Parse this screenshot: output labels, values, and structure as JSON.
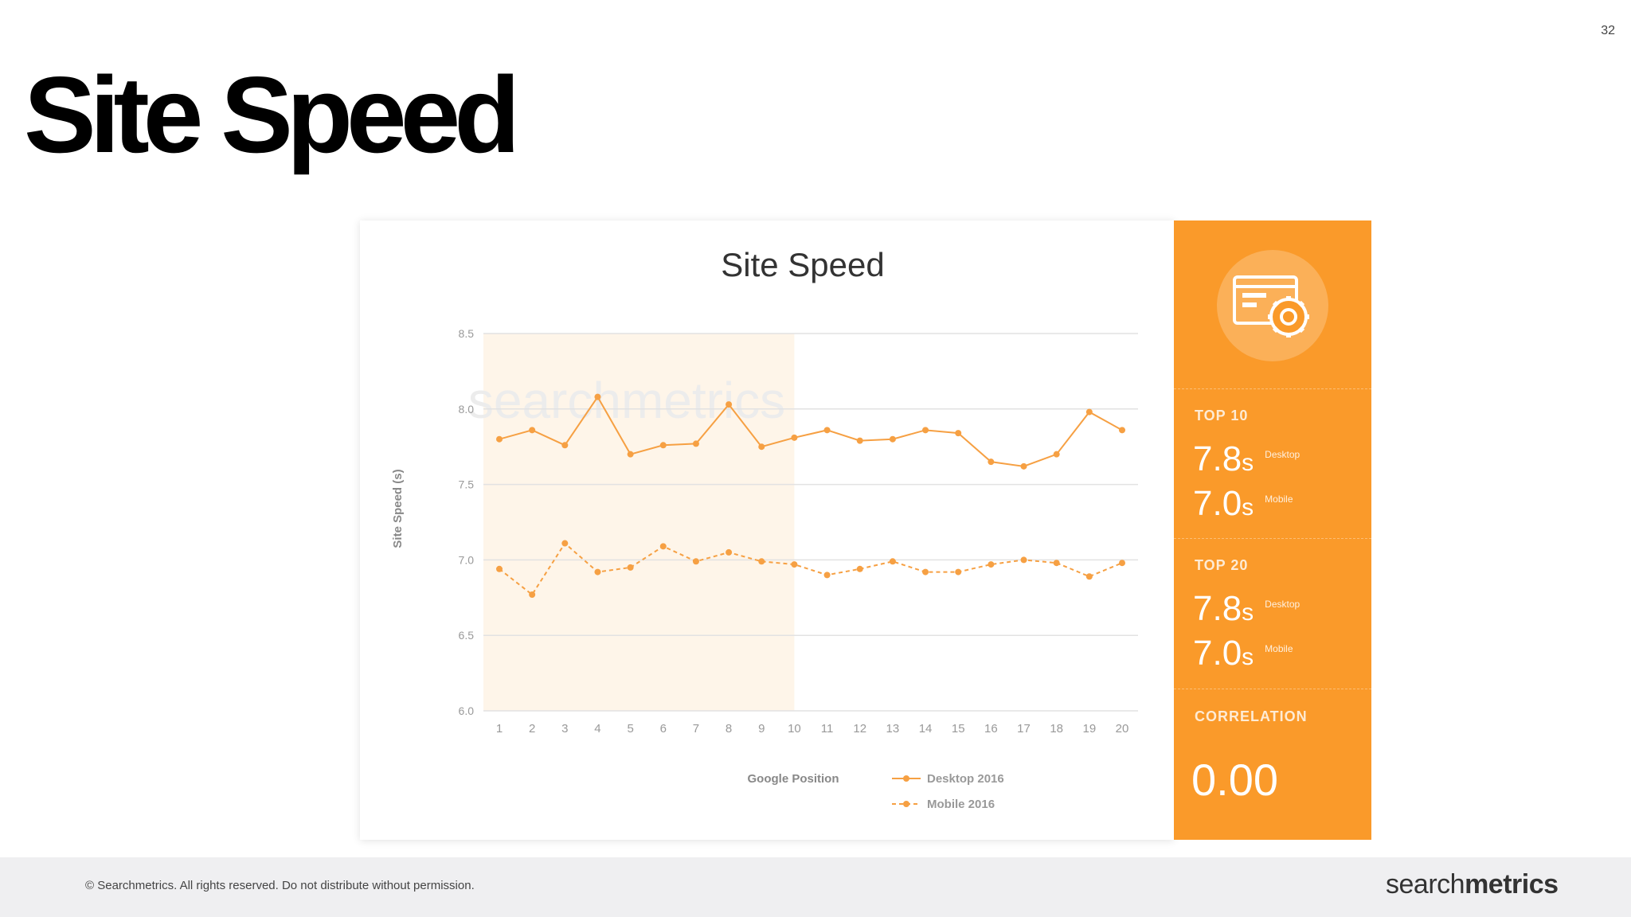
{
  "slide": {
    "page_number": "32",
    "title": "Site Speed"
  },
  "chart_data": {
    "type": "line",
    "title": "Site Speed",
    "xlabel": "Google Position",
    "ylabel": "Site Speed (s)",
    "x": [
      1,
      2,
      3,
      4,
      5,
      6,
      7,
      8,
      9,
      10,
      11,
      12,
      13,
      14,
      15,
      16,
      17,
      18,
      19,
      20
    ],
    "ylim": [
      6.0,
      8.5
    ],
    "yticks": [
      "6.0",
      "6.5",
      "7.0",
      "7.5",
      "8.0",
      "8.5"
    ],
    "highlight_range": [
      1,
      10
    ],
    "grid": true,
    "legend": "bottom",
    "series": [
      {
        "name": "Desktop 2016",
        "style": "solid",
        "color": "#f6a043",
        "values": [
          7.8,
          7.86,
          7.76,
          8.08,
          7.7,
          7.76,
          7.77,
          8.03,
          7.75,
          7.81,
          7.86,
          7.79,
          7.8,
          7.86,
          7.84,
          7.65,
          7.62,
          7.7,
          7.98,
          7.86
        ]
      },
      {
        "name": "Mobile 2016",
        "style": "dashed",
        "color": "#f6a043",
        "values": [
          6.94,
          6.77,
          7.11,
          6.92,
          6.95,
          7.09,
          6.99,
          7.05,
          6.99,
          6.97,
          6.9,
          6.94,
          6.99,
          6.92,
          6.92,
          6.97,
          7.0,
          6.98,
          6.89,
          6.98
        ]
      }
    ],
    "watermark": "searchmetrics"
  },
  "panel": {
    "top10": {
      "label": "TOP 10",
      "desktop_value": "7.8",
      "mobile_value": "7.0",
      "unit": "s",
      "desktop_label": "Desktop",
      "mobile_label": "Mobile"
    },
    "top20": {
      "label": "TOP 20",
      "desktop_value": "7.8",
      "mobile_value": "7.0",
      "unit": "s",
      "desktop_label": "Desktop",
      "mobile_label": "Mobile"
    },
    "correlation": {
      "label": "CORRELATION",
      "value": "0.00"
    },
    "icon": "browser-settings-icon",
    "accent_color": "#fa9a2a"
  },
  "footer": {
    "copyright": "© Searchmetrics. All rights reserved. Do not distribute without permission.",
    "brand_light": "search",
    "brand_bold": "metrics"
  }
}
